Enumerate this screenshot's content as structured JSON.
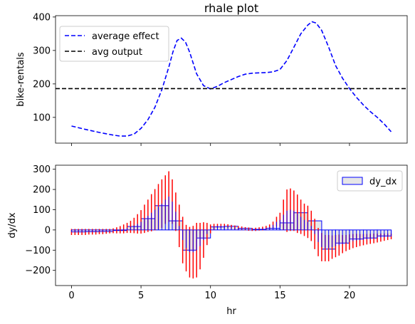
{
  "chart_data": [
    {
      "type": "line",
      "title": "rhale plot",
      "xlabel": "",
      "ylabel": "bike-rentals",
      "xlim": [
        -1.15,
        24.15
      ],
      "ylim": [
        23,
        404
      ],
      "xticks": [
        0,
        5,
        10,
        15,
        20
      ],
      "yticks": [
        100,
        200,
        300,
        400
      ],
      "legend_position": "top-left",
      "series": [
        {
          "name": "average effect",
          "style": "dashed",
          "color": "#0000ff",
          "x": [
            0,
            1,
            2,
            3,
            3.5,
            4,
            4.5,
            5,
            5.5,
            6,
            6.5,
            7,
            7.3,
            7.6,
            7.9,
            8.2,
            8.5,
            9,
            9.5,
            10,
            10.5,
            11,
            11.5,
            12,
            12.5,
            13,
            13.5,
            14,
            14.5,
            15,
            15.5,
            16,
            16.5,
            17,
            17.3,
            17.6,
            18,
            18.5,
            19,
            19.5,
            20,
            20.5,
            21,
            21.5,
            22,
            22.5,
            23
          ],
          "y": [
            74,
            64,
            55,
            47,
            44,
            44,
            50,
            67,
            93,
            130,
            183,
            250,
            296,
            330,
            337,
            325,
            295,
            230,
            195,
            185,
            193,
            204,
            213,
            222,
            229,
            232,
            233,
            234,
            236,
            243,
            270,
            310,
            350,
            376,
            386,
            382,
            360,
            310,
            255,
            217,
            186,
            160,
            137,
            117,
            100,
            80,
            57
          ]
        },
        {
          "name": "avg output",
          "style": "dashed",
          "color": "#000000",
          "y_const": 186
        }
      ]
    },
    {
      "type": "bar",
      "title": "",
      "xlabel": "hr",
      "ylabel": "dy/dx",
      "xlim": [
        -1.15,
        24.15
      ],
      "ylim": [
        -275,
        320
      ],
      "xticks": [
        0,
        5,
        10,
        15,
        20
      ],
      "xtick_labels": [
        "0",
        "5",
        "10",
        "15",
        "20"
      ],
      "yticks": [
        -200,
        -100,
        0,
        100,
        200,
        300
      ],
      "legend_position": "top-right",
      "bar_face_color": "#e6e6e6",
      "bar_edge_color": "#0000ff",
      "errorbar_color": "#ff0000",
      "bins": [
        {
          "x0": 0,
          "x1": 1,
          "value": -10
        },
        {
          "x0": 1,
          "x1": 2,
          "value": -9
        },
        {
          "x0": 2,
          "x1": 3,
          "value": -8
        },
        {
          "x0": 3,
          "x1": 4,
          "value": -3
        },
        {
          "x0": 4,
          "x1": 5,
          "value": 17
        },
        {
          "x0": 5,
          "x1": 6,
          "value": 56
        },
        {
          "x0": 6,
          "x1": 7,
          "value": 120
        },
        {
          "x0": 7,
          "x1": 8,
          "value": 45
        },
        {
          "x0": 8,
          "x1": 9,
          "value": -100
        },
        {
          "x0": 9,
          "x1": 10,
          "value": -40
        },
        {
          "x0": 10,
          "x1": 11,
          "value": 15
        },
        {
          "x0": 11,
          "x1": 12,
          "value": 18
        },
        {
          "x0": 12,
          "x1": 13,
          "value": 8
        },
        {
          "x0": 13,
          "x1": 14,
          "value": 3
        },
        {
          "x0": 14,
          "x1": 15,
          "value": 8
        },
        {
          "x0": 15,
          "x1": 16,
          "value": 35
        },
        {
          "x0": 16,
          "x1": 17,
          "value": 85
        },
        {
          "x0": 17,
          "x1": 18,
          "value": 45
        },
        {
          "x0": 18,
          "x1": 19,
          "value": -95
        },
        {
          "x0": 19,
          "x1": 20,
          "value": -65
        },
        {
          "x0": 20,
          "x1": 21,
          "value": -45
        },
        {
          "x0": 21,
          "x1": 22,
          "value": -40
        },
        {
          "x0": 22,
          "x1": 23,
          "value": -30
        }
      ],
      "series": [
        {
          "name": "dy_dx",
          "x": [
            0,
            0.25,
            0.5,
            0.75,
            1,
            1.25,
            1.5,
            1.75,
            2,
            2.25,
            2.5,
            2.75,
            3,
            3.25,
            3.5,
            3.75,
            4,
            4.25,
            4.5,
            4.75,
            5,
            5.25,
            5.5,
            5.75,
            6,
            6.25,
            6.5,
            6.75,
            7,
            7.25,
            7.5,
            7.75,
            8,
            8.25,
            8.5,
            8.75,
            9,
            9.25,
            9.5,
            9.75,
            10,
            10.25,
            10.5,
            10.75,
            11,
            11.25,
            11.5,
            11.75,
            12,
            12.25,
            12.5,
            12.75,
            13,
            13.25,
            13.5,
            13.75,
            14,
            14.25,
            14.5,
            14.75,
            15,
            15.25,
            15.5,
            15.75,
            16,
            16.25,
            16.5,
            16.75,
            17,
            17.25,
            17.5,
            17.75,
            18,
            18.25,
            18.5,
            18.75,
            19,
            19.25,
            19.5,
            19.75,
            20,
            20.25,
            20.5,
            20.75,
            21,
            21.25,
            21.5,
            21.75,
            22,
            22.25,
            22.5,
            22.75,
            23
          ],
          "values": [
            -10,
            -10,
            -10,
            -10,
            -10,
            -9,
            -9,
            -9,
            -8,
            -8,
            -7,
            -6,
            -4,
            -2,
            1,
            5,
            10,
            15,
            22,
            30,
            40,
            55,
            70,
            85,
            100,
            115,
            130,
            150,
            165,
            140,
            90,
            20,
            -50,
            -90,
            -110,
            -110,
            -100,
            -80,
            -50,
            -20,
            5,
            15,
            20,
            20,
            20,
            18,
            15,
            12,
            10,
            8,
            6,
            4,
            2,
            3,
            5,
            7,
            10,
            15,
            25,
            40,
            50,
            75,
            95,
            100,
            95,
            80,
            65,
            50,
            40,
            20,
            -20,
            -60,
            -85,
            -90,
            -90,
            -85,
            -80,
            -75,
            -70,
            -65,
            -60,
            -55,
            -52,
            -50,
            -48,
            -46,
            -44,
            -42,
            -40,
            -38,
            -36,
            -34,
            -32
          ],
          "errors": [
            15,
            15,
            15,
            15,
            15,
            14,
            14,
            14,
            13,
            13,
            12,
            11,
            12,
            15,
            18,
            22,
            25,
            30,
            38,
            48,
            58,
            70,
            80,
            92,
            102,
            112,
            120,
            120,
            125,
            110,
            95,
            105,
            115,
            115,
            125,
            130,
            135,
            115,
            88,
            55,
            22,
            15,
            10,
            10,
            10,
            10,
            10,
            10,
            9,
            9,
            8,
            8,
            7,
            8,
            8,
            9,
            10,
            12,
            16,
            25,
            35,
            75,
            105,
            105,
            100,
            95,
            85,
            80,
            80,
            75,
            75,
            70,
            70,
            65,
            65,
            58,
            55,
            52,
            45,
            40,
            38,
            35,
            33,
            30,
            28,
            26,
            25,
            24,
            22,
            20,
            18,
            16,
            14
          ]
        }
      ]
    }
  ]
}
